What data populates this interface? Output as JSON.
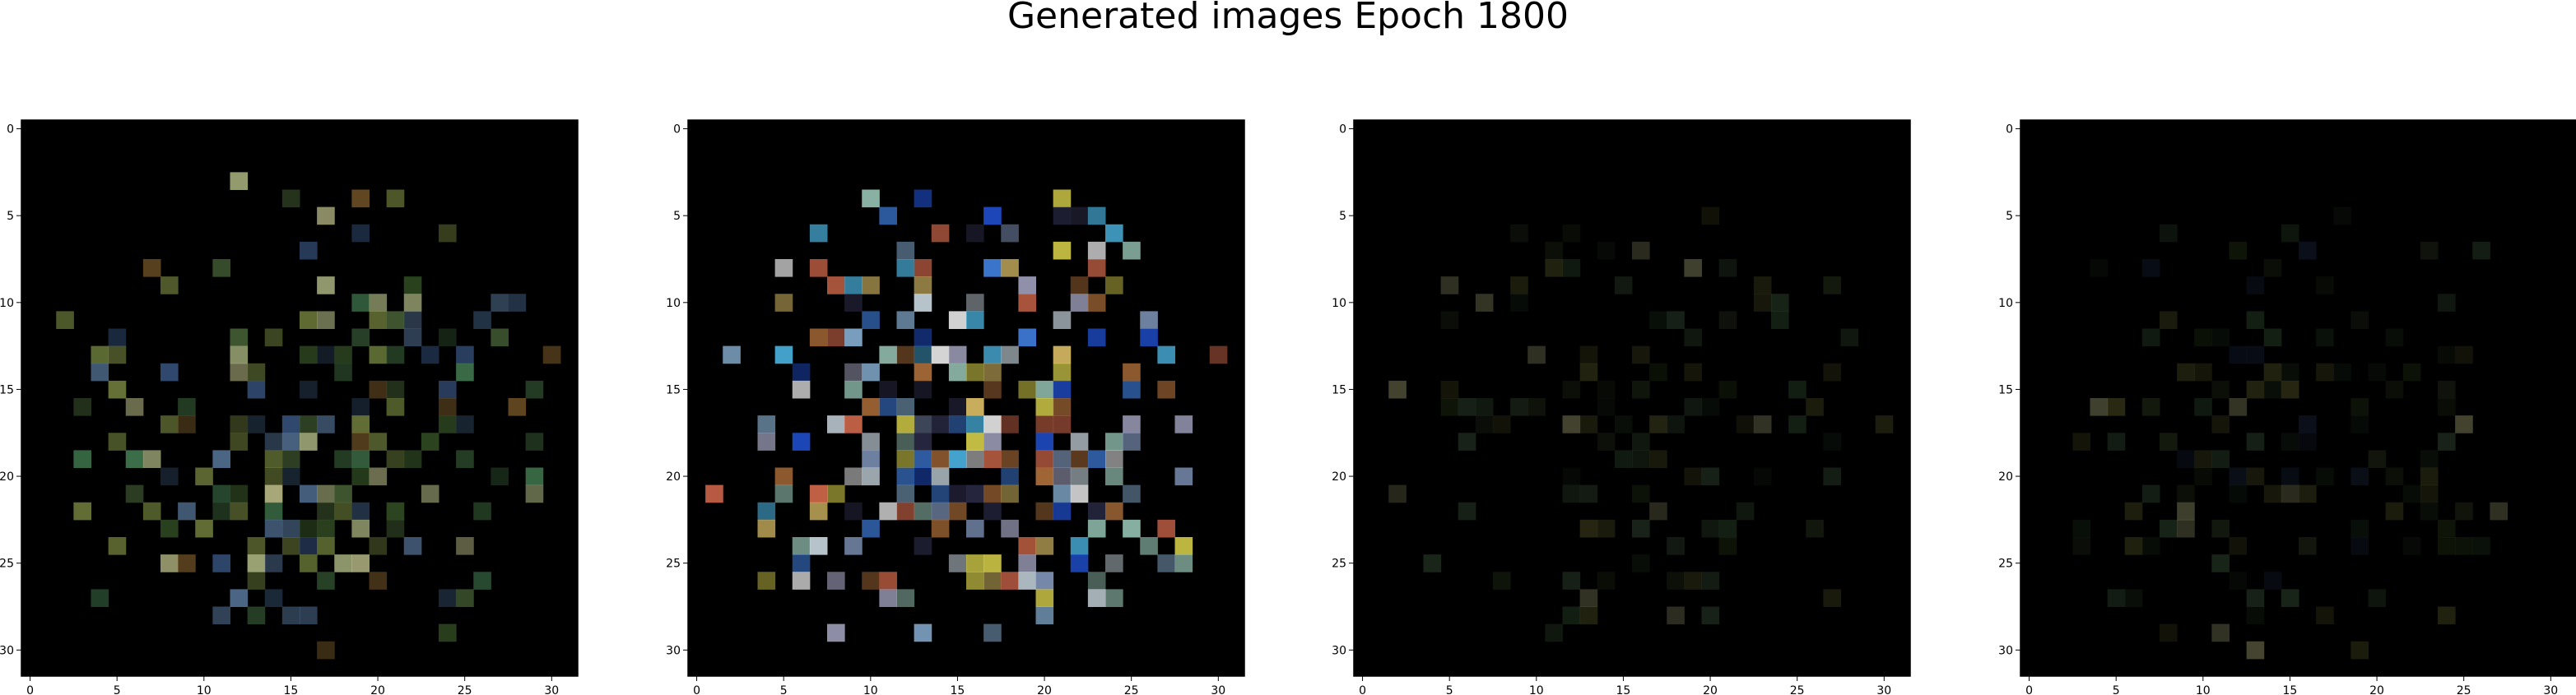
{
  "figure": {
    "title": "Generated images Epoch 1800"
  },
  "axes": {
    "x_ticks": [
      "0",
      "5",
      "10",
      "15",
      "20",
      "25",
      "30"
    ],
    "y_ticks": [
      "0",
      "5",
      "10",
      "15",
      "20",
      "25",
      "30"
    ]
  },
  "panels": [
    {
      "index": 1
    },
    {
      "index": 2
    },
    {
      "index": 3
    },
    {
      "index": 4
    }
  ],
  "colors": {
    "background": "#ffffff",
    "image_background": "#000000"
  }
}
